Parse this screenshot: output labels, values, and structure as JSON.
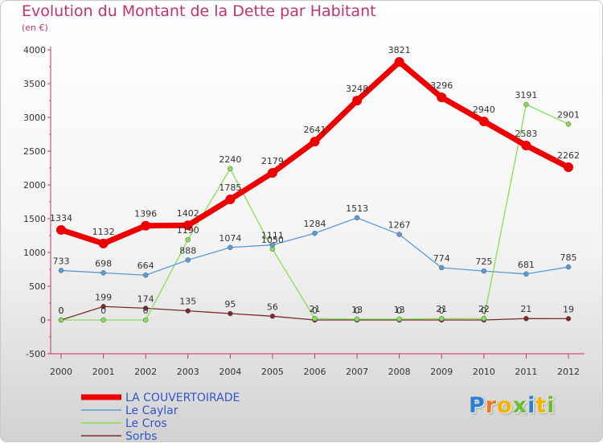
{
  "chart_data": {
    "type": "line",
    "title": "Evolution du Montant de la Dette par Habitant",
    "subtitle": "(en €)",
    "x": [
      "2000",
      "2001",
      "2002",
      "2003",
      "2004",
      "2005",
      "2006",
      "2007",
      "2008",
      "2009",
      "2010",
      "2011",
      "2012"
    ],
    "ylim": [
      -500,
      4000
    ],
    "yticks": [
      "-500",
      "0",
      "500",
      "1000",
      "1500",
      "2000",
      "2500",
      "3000",
      "3500",
      "4000"
    ],
    "grid": false,
    "legend_position": "bottom-left",
    "series": [
      {
        "name": "LA COUVERTOIRADE",
        "color": "#ee0000",
        "values": [
          1334,
          1132,
          1396,
          1402,
          1785,
          2179,
          2641,
          3248,
          3821,
          3296,
          2940,
          2583,
          2262
        ]
      },
      {
        "name": "Le Caylar",
        "color": "#5b9bd5",
        "values": [
          733,
          698,
          664,
          888,
          1074,
          1111,
          1284,
          1513,
          1267,
          774,
          725,
          681,
          785
        ]
      },
      {
        "name": "Le Cros",
        "color": "#88dd55",
        "values": [
          0,
          0,
          0,
          1190,
          2240,
          1050,
          21,
          13,
          13,
          21,
          22,
          3191,
          2901
        ]
      },
      {
        "name": "Sorbs",
        "color": "#7a2a2a",
        "values": [
          0,
          199,
          174,
          135,
          95,
          56,
          0,
          0,
          0,
          0,
          0,
          21,
          19
        ]
      }
    ],
    "value_labels": [
      [
        "1334",
        "1132",
        "1396",
        "1402",
        "1785",
        "2179",
        "2641",
        "3248",
        "3821",
        "3296",
        "2940",
        "2583",
        "2262"
      ],
      [
        "733",
        "698",
        "664",
        "888",
        "1074",
        "1111",
        "1284",
        "1513",
        "1267",
        "774",
        "725",
        "681",
        "785"
      ],
      [
        "0",
        "0",
        "0",
        "1190",
        "2240",
        "1050",
        "21",
        "13",
        "13",
        "21",
        "22",
        "3191",
        "2901"
      ],
      [
        "0",
        "199",
        "174",
        "135",
        "95",
        "56",
        "0",
        "0",
        "0",
        "0",
        "0",
        "21",
        "19"
      ]
    ]
  },
  "logo": {
    "letters": [
      "P",
      "r",
      "o",
      "x",
      "i",
      "t",
      "i"
    ],
    "colors": [
      "#2a7fd4",
      "#ee7722",
      "#f2b400",
      "#6cbd2c",
      "#2a7fd4",
      "#f2b400",
      "#6cbd2c"
    ]
  }
}
